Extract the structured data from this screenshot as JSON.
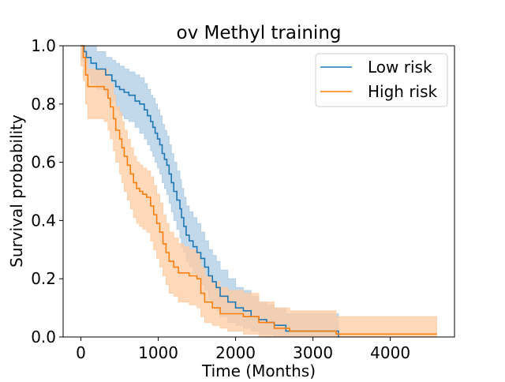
{
  "chart_data": {
    "type": "line",
    "step": true,
    "title": "ov Methyl training",
    "xlabel": "Time (Months)",
    "ylabel": "Survival probability",
    "xlim": [
      -230,
      4830
    ],
    "ylim": [
      0,
      1
    ],
    "xticks": [
      0,
      1000,
      2000,
      3000,
      4000
    ],
    "yticks": [
      0.0,
      0.2,
      0.4,
      0.6,
      0.8,
      1.0
    ],
    "xtick_labels": [
      "0",
      "1000",
      "2000",
      "3000",
      "4000"
    ],
    "ytick_labels": [
      "0.0",
      "0.2",
      "0.4",
      "0.6",
      "0.8",
      "1.0"
    ],
    "grid": false,
    "legend": {
      "position": "top-right",
      "entries": [
        "Low risk",
        "High risk"
      ]
    },
    "series": [
      {
        "name": "Low risk",
        "color": "#1f77b4",
        "band_color": "#aecbe4",
        "x": [
          0,
          40,
          70,
          130,
          200,
          320,
          400,
          450,
          500,
          560,
          620,
          700,
          760,
          820,
          860,
          900,
          930,
          960,
          990,
          1020,
          1050,
          1080,
          1110,
          1140,
          1170,
          1200,
          1240,
          1280,
          1300,
          1330,
          1360,
          1400,
          1450,
          1500,
          1550,
          1600,
          1650,
          1700,
          1750,
          1800,
          1900,
          2000,
          2100,
          2200,
          2300,
          2400,
          2500,
          2650,
          3330
        ],
        "y": [
          1.0,
          0.98,
          0.96,
          0.94,
          0.92,
          0.9,
          0.88,
          0.86,
          0.85,
          0.84,
          0.83,
          0.81,
          0.8,
          0.78,
          0.76,
          0.74,
          0.72,
          0.7,
          0.68,
          0.66,
          0.63,
          0.61,
          0.59,
          0.56,
          0.53,
          0.5,
          0.47,
          0.44,
          0.41,
          0.38,
          0.35,
          0.33,
          0.31,
          0.29,
          0.27,
          0.24,
          0.21,
          0.19,
          0.17,
          0.14,
          0.12,
          0.1,
          0.09,
          0.07,
          0.06,
          0.05,
          0.04,
          0.02,
          0.0
        ],
        "upper": [
          1.0,
          1.0,
          1.0,
          1.0,
          0.98,
          0.96,
          0.95,
          0.94,
          0.93,
          0.92,
          0.91,
          0.9,
          0.89,
          0.87,
          0.85,
          0.83,
          0.82,
          0.8,
          0.78,
          0.76,
          0.73,
          0.71,
          0.69,
          0.66,
          0.63,
          0.6,
          0.57,
          0.54,
          0.51,
          0.48,
          0.45,
          0.43,
          0.41,
          0.39,
          0.36,
          0.33,
          0.3,
          0.28,
          0.26,
          0.23,
          0.2,
          0.17,
          0.16,
          0.14,
          0.12,
          0.11,
          0.1,
          0.08,
          0.08
        ],
        "lower": [
          0.95,
          0.93,
          0.9,
          0.87,
          0.85,
          0.83,
          0.81,
          0.78,
          0.76,
          0.75,
          0.74,
          0.72,
          0.7,
          0.68,
          0.66,
          0.64,
          0.62,
          0.6,
          0.58,
          0.56,
          0.53,
          0.51,
          0.49,
          0.46,
          0.43,
          0.4,
          0.37,
          0.34,
          0.31,
          0.29,
          0.26,
          0.24,
          0.22,
          0.2,
          0.18,
          0.16,
          0.13,
          0.11,
          0.09,
          0.07,
          0.05,
          0.04,
          0.03,
          0.02,
          0.01,
          0.01,
          0.0,
          0.0,
          0.0
        ]
      },
      {
        "name": "High risk",
        "color": "#ff7f0e",
        "band_color": "#ffcca1",
        "x": [
          0,
          30,
          60,
          90,
          300,
          350,
          380,
          420,
          450,
          500,
          530,
          560,
          600,
          640,
          680,
          720,
          760,
          800,
          850,
          900,
          940,
          980,
          1020,
          1060,
          1100,
          1140,
          1200,
          1260,
          1330,
          1400,
          1500,
          1550,
          1600,
          1700,
          1800,
          1900,
          2100,
          2300,
          2500,
          2700,
          3300,
          4600
        ],
        "y": [
          1.0,
          0.96,
          0.9,
          0.86,
          0.85,
          0.82,
          0.79,
          0.75,
          0.71,
          0.68,
          0.65,
          0.62,
          0.59,
          0.56,
          0.53,
          0.51,
          0.5,
          0.49,
          0.48,
          0.45,
          0.42,
          0.39,
          0.36,
          0.32,
          0.29,
          0.26,
          0.24,
          0.22,
          0.22,
          0.21,
          0.2,
          0.15,
          0.12,
          0.1,
          0.08,
          0.08,
          0.07,
          0.05,
          0.03,
          0.02,
          0.01,
          0.01
        ],
        "upper": [
          1.0,
          1.0,
          0.97,
          0.92,
          0.92,
          0.9,
          0.87,
          0.83,
          0.79,
          0.77,
          0.74,
          0.71,
          0.68,
          0.65,
          0.62,
          0.6,
          0.59,
          0.58,
          0.57,
          0.55,
          0.52,
          0.49,
          0.46,
          0.42,
          0.39,
          0.36,
          0.34,
          0.32,
          0.31,
          0.3,
          0.29,
          0.24,
          0.21,
          0.19,
          0.17,
          0.16,
          0.15,
          0.12,
          0.1,
          0.09,
          0.07,
          0.07
        ],
        "lower": [
          0.93,
          0.88,
          0.8,
          0.75,
          0.74,
          0.71,
          0.68,
          0.64,
          0.6,
          0.56,
          0.53,
          0.5,
          0.47,
          0.44,
          0.41,
          0.39,
          0.38,
          0.37,
          0.36,
          0.33,
          0.3,
          0.27,
          0.24,
          0.21,
          0.18,
          0.15,
          0.14,
          0.12,
          0.12,
          0.11,
          0.1,
          0.07,
          0.05,
          0.04,
          0.03,
          0.02,
          0.01,
          0.0,
          0.0,
          0.0,
          0.0,
          0.0
        ]
      }
    ]
  }
}
